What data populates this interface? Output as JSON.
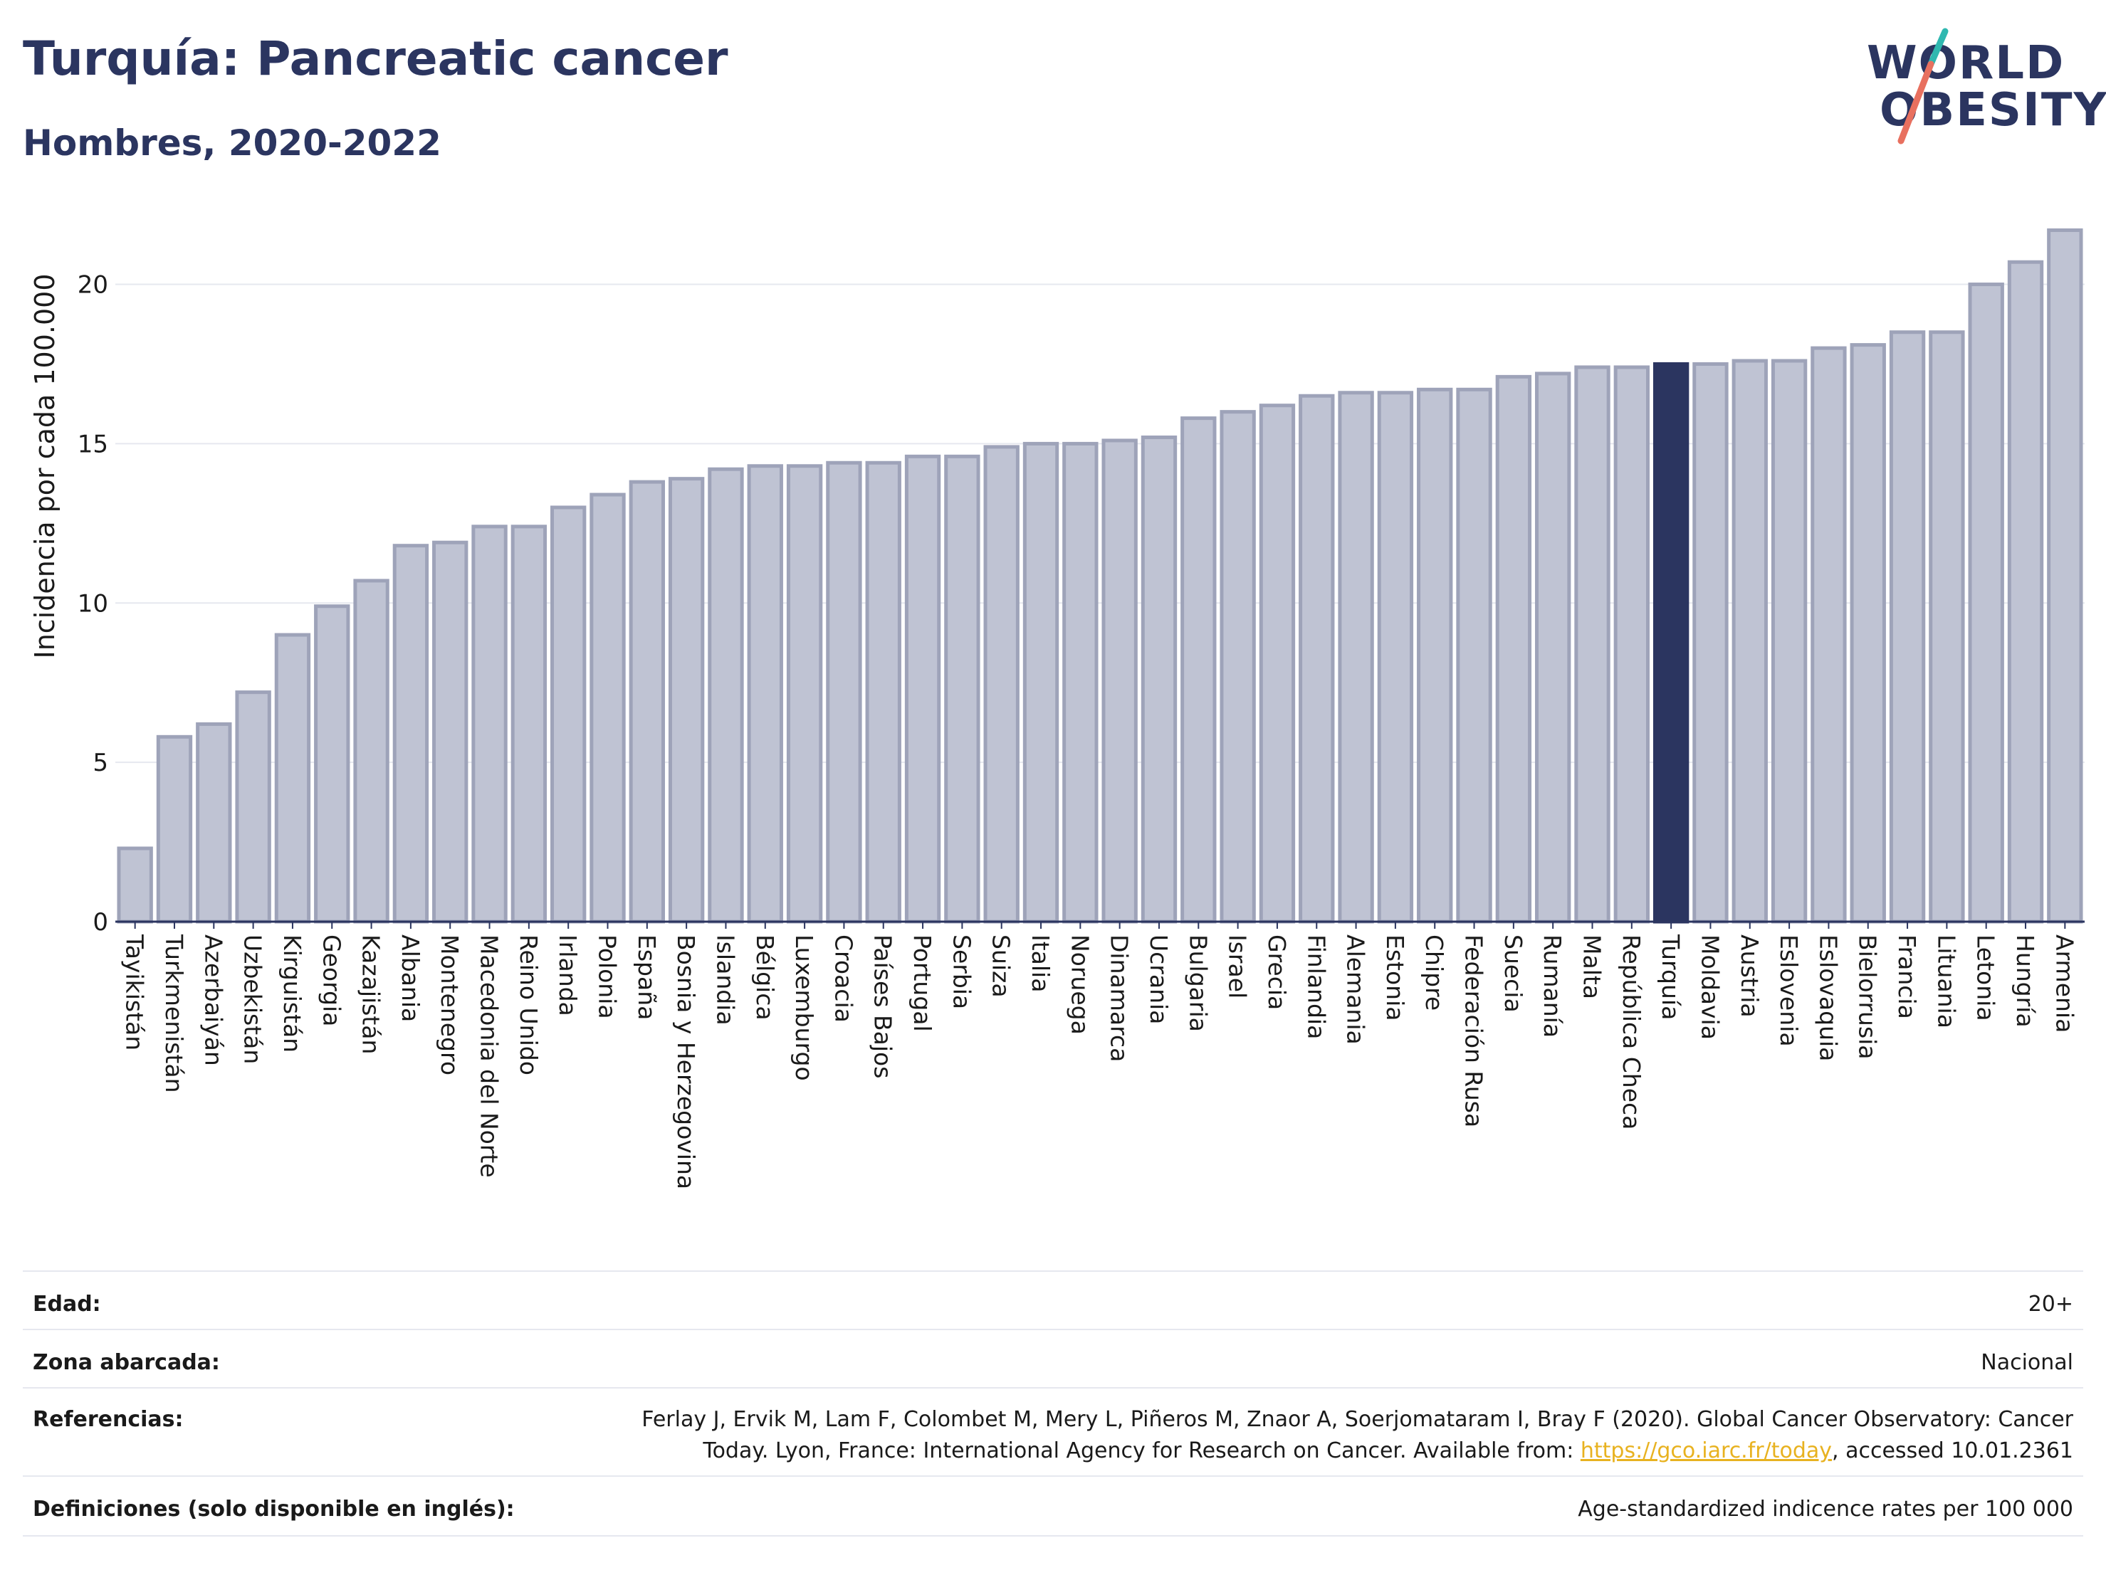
{
  "header": {
    "title": "Turquía: Pancreatic cancer",
    "subtitle": "Hombres, 2020-2022"
  },
  "logo": {
    "line1": "WORLD",
    "line2": "OBESITY"
  },
  "colors": {
    "bar": "#bfc3d3",
    "bar_border": "#9ea3b9",
    "highlight": "#2b3560",
    "title": "#2b3560"
  },
  "chart_data": {
    "type": "bar",
    "ylabel": "Incidencia por cada 100.000",
    "xlabel": "",
    "ylim": [
      0,
      22
    ],
    "yticks": [
      0,
      5,
      10,
      15,
      20
    ],
    "grid": true,
    "highlight": "Turquía",
    "categories": [
      "Tayikistán",
      "Turkmenistán",
      "Azerbaiyán",
      "Uzbekistán",
      "Kirguistán",
      "Georgia",
      "Kazajistán",
      "Albania",
      "Montenegro",
      "Macedonia del Norte",
      "Reino Unido",
      "Irlanda",
      "Polonia",
      "España",
      "Bosnia y Herzegovina",
      "Islandia",
      "Bélgica",
      "Luxemburgo",
      "Croacia",
      "Países Bajos",
      "Portugal",
      "Serbia",
      "Suiza",
      "Italia",
      "Noruega",
      "Dinamarca",
      "Ucrania",
      "Bulgaria",
      "Israel",
      "Grecia",
      "Finlandia",
      "Alemania",
      "Estonia",
      "Chipre",
      "Federación Rusa",
      "Suecia",
      "Rumanía",
      "Malta",
      "República Checa",
      "Turquía",
      "Moldavia",
      "Austria",
      "Eslovenia",
      "Eslovaquia",
      "Bielorrusia",
      "Francia",
      "Lituania",
      "Letonia",
      "Hungría",
      "Armenia"
    ],
    "values": [
      2.3,
      5.8,
      6.2,
      7.2,
      9.0,
      9.9,
      10.7,
      11.8,
      11.9,
      12.4,
      12.4,
      13.0,
      13.4,
      13.8,
      13.9,
      14.2,
      14.3,
      14.3,
      14.4,
      14.4,
      14.6,
      14.6,
      14.9,
      15.0,
      15.0,
      15.1,
      15.2,
      15.8,
      16.0,
      16.2,
      16.5,
      16.6,
      16.6,
      16.7,
      16.7,
      17.1,
      17.2,
      17.4,
      17.4,
      17.5,
      17.5,
      17.6,
      17.6,
      18.0,
      18.1,
      18.5,
      18.5,
      20.0,
      20.7,
      21.7
    ]
  },
  "info": {
    "rows": [
      {
        "label": "Edad:",
        "value": "20+"
      },
      {
        "label": "Zona abarcada:",
        "value": "Nacional"
      },
      {
        "label": "Referencias:",
        "value_line1": "Ferlay J, Ervik M, Lam F, Colombet M, Mery L, Piñeros M, Znaor A, Soerjomataram I, Bray F (2020). Global Cancer Observatory: Cancer",
        "value_line2_pre": "Today. Lyon, France: International Agency for Research on Cancer. Available from: ",
        "link": "https://gco.iarc.fr/today",
        "value_line2_post": ", accessed 10.01.2361"
      },
      {
        "label": "Definiciones (solo disponible en inglés):",
        "value": "Age-standardized indicence rates per 100 000"
      }
    ]
  }
}
